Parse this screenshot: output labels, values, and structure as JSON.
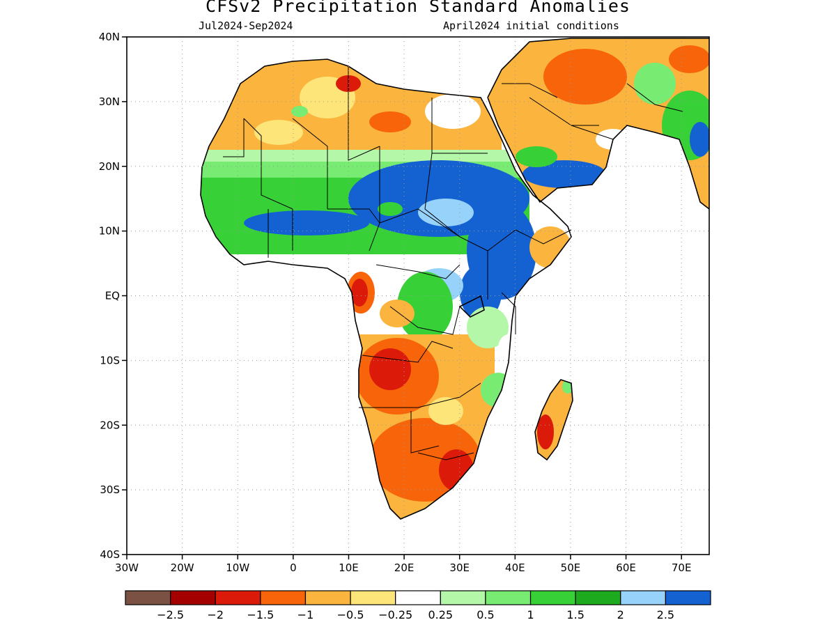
{
  "header": {
    "title": "CFSv2 Precipitation Standard Anomalies",
    "period": "Jul2024-Sep2024",
    "init": "April2024 initial conditions"
  },
  "axes": {
    "lat_labels": [
      "40N",
      "30N",
      "20N",
      "10N",
      "EQ",
      "10S",
      "20S",
      "30S",
      "40S"
    ],
    "lon_labels": [
      "30W",
      "20W",
      "10W",
      "0",
      "10E",
      "20E",
      "30E",
      "40E",
      "50E",
      "60E",
      "70E"
    ]
  },
  "colorbar": {
    "colors": [
      "#7a5142",
      "#a50000",
      "#dc1a0a",
      "#f8640a",
      "#fbb43d",
      "#fde57a",
      "#ffffff",
      "#b4f7a8",
      "#78ec72",
      "#37d037",
      "#1eaa1e",
      "#96d2fa",
      "#1461d2"
    ],
    "labels": [
      "-2.5",
      "-2",
      "-1.5",
      "-1",
      "-0.5",
      "-0.25",
      "0.25",
      "0.5",
      "1",
      "1.5",
      "2",
      "2.5"
    ]
  }
}
